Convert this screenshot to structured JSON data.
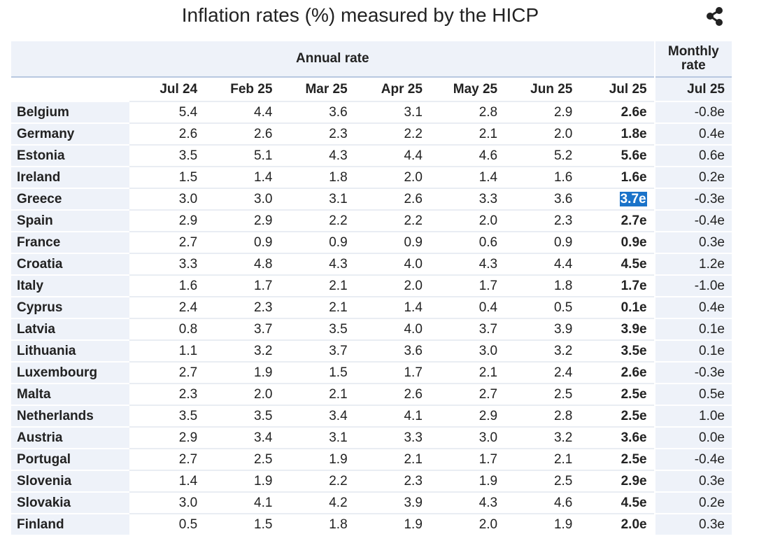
{
  "title": "Inflation rates (%) measured by the HICP",
  "share_icon": "share-icon",
  "chart_data": {
    "type": "table",
    "title": "Inflation rates (%) measured by the HICP",
    "group_headers": {
      "annual": "Annual rate",
      "monthly": "Monthly rate"
    },
    "columns": [
      "Jul 24",
      "Feb 25",
      "Mar 25",
      "Apr 25",
      "May 25",
      "Jun 25",
      "Jul 25"
    ],
    "monthly_column": "Jul 25",
    "highlighted_cell": {
      "row": "Greece",
      "column": "Jul 25"
    },
    "rows": [
      {
        "name": "Belgium",
        "annual": [
          "5.4",
          "4.4",
          "3.6",
          "3.1",
          "2.8",
          "2.9",
          "2.6e"
        ],
        "monthly": "-0.8e"
      },
      {
        "name": "Germany",
        "annual": [
          "2.6",
          "2.6",
          "2.3",
          "2.2",
          "2.1",
          "2.0",
          "1.8e"
        ],
        "monthly": "0.4e"
      },
      {
        "name": "Estonia",
        "annual": [
          "3.5",
          "5.1",
          "4.3",
          "4.4",
          "4.6",
          "5.2",
          "5.6e"
        ],
        "monthly": "0.6e"
      },
      {
        "name": "Ireland",
        "annual": [
          "1.5",
          "1.4",
          "1.8",
          "2.0",
          "1.4",
          "1.6",
          "1.6e"
        ],
        "monthly": "0.2e"
      },
      {
        "name": "Greece",
        "annual": [
          "3.0",
          "3.0",
          "3.1",
          "2.6",
          "3.3",
          "3.6",
          "3.7e"
        ],
        "monthly": "-0.3e"
      },
      {
        "name": "Spain",
        "annual": [
          "2.9",
          "2.9",
          "2.2",
          "2.2",
          "2.0",
          "2.3",
          "2.7e"
        ],
        "monthly": "-0.4e"
      },
      {
        "name": "France",
        "annual": [
          "2.7",
          "0.9",
          "0.9",
          "0.9",
          "0.6",
          "0.9",
          "0.9e"
        ],
        "monthly": "0.3e"
      },
      {
        "name": "Croatia",
        "annual": [
          "3.3",
          "4.8",
          "4.3",
          "4.0",
          "4.3",
          "4.4",
          "4.5e"
        ],
        "monthly": "1.2e"
      },
      {
        "name": "Italy",
        "annual": [
          "1.6",
          "1.7",
          "2.1",
          "2.0",
          "1.7",
          "1.8",
          "1.7e"
        ],
        "monthly": "-1.0e"
      },
      {
        "name": "Cyprus",
        "annual": [
          "2.4",
          "2.3",
          "2.1",
          "1.4",
          "0.4",
          "0.5",
          "0.1e"
        ],
        "monthly": "0.4e"
      },
      {
        "name": "Latvia",
        "annual": [
          "0.8",
          "3.7",
          "3.5",
          "4.0",
          "3.7",
          "3.9",
          "3.9e"
        ],
        "monthly": "0.1e"
      },
      {
        "name": "Lithuania",
        "annual": [
          "1.1",
          "3.2",
          "3.7",
          "3.6",
          "3.0",
          "3.2",
          "3.5e"
        ],
        "monthly": "0.1e"
      },
      {
        "name": "Luxembourg",
        "annual": [
          "2.7",
          "1.9",
          "1.5",
          "1.7",
          "2.1",
          "2.4",
          "2.6e"
        ],
        "monthly": "-0.3e"
      },
      {
        "name": "Malta",
        "annual": [
          "2.3",
          "2.0",
          "2.1",
          "2.6",
          "2.7",
          "2.5",
          "2.5e"
        ],
        "monthly": "0.5e"
      },
      {
        "name": "Netherlands",
        "annual": [
          "3.5",
          "3.5",
          "3.4",
          "4.1",
          "2.9",
          "2.8",
          "2.5e"
        ],
        "monthly": "1.0e"
      },
      {
        "name": "Austria",
        "annual": [
          "2.9",
          "3.4",
          "3.1",
          "3.3",
          "3.0",
          "3.2",
          "3.6e"
        ],
        "monthly": "0.0e"
      },
      {
        "name": "Portugal",
        "annual": [
          "2.7",
          "2.5",
          "1.9",
          "2.1",
          "1.7",
          "2.1",
          "2.5e"
        ],
        "monthly": "-0.4e"
      },
      {
        "name": "Slovenia",
        "annual": [
          "1.4",
          "1.9",
          "2.2",
          "2.3",
          "1.9",
          "2.5",
          "2.9e"
        ],
        "monthly": "0.3e"
      },
      {
        "name": "Slovakia",
        "annual": [
          "3.0",
          "4.1",
          "4.2",
          "3.9",
          "4.3",
          "4.6",
          "4.5e"
        ],
        "monthly": "0.2e"
      },
      {
        "name": "Finland",
        "annual": [
          "0.5",
          "1.5",
          "1.8",
          "1.9",
          "2.0",
          "1.9",
          "2.0e"
        ],
        "monthly": "0.3e"
      }
    ]
  }
}
